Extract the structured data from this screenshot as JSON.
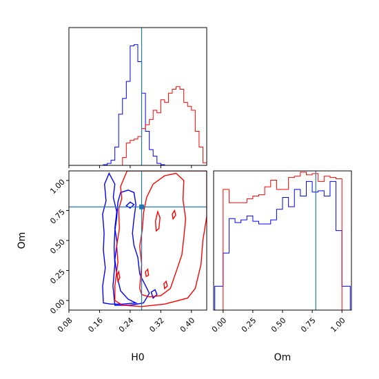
{
  "chart_data": {
    "type": "corner",
    "parameters": [
      "H0",
      "Om"
    ],
    "truth": {
      "H0": 0.27,
      "Om": 0.78
    },
    "colors": {
      "blue": "#0000ff",
      "red": "#ff0000",
      "truth": "#1f77b4",
      "axes": "#000000"
    },
    "panels": [
      {
        "id": "h0-marginal",
        "type": "step-histogram",
        "xlim": [
          0.08,
          0.44
        ],
        "x_ticks": [
          0.08,
          0.16,
          0.24,
          0.32,
          0.4
        ],
        "x_ticks_shown": false,
        "y_ticks_shown": false,
        "ylim": [
          0,
          1.05
        ],
        "bin_edges": [
          0.08,
          0.09,
          0.1,
          0.11,
          0.12,
          0.13,
          0.14,
          0.15,
          0.16,
          0.17,
          0.18,
          0.19,
          0.2,
          0.21,
          0.22,
          0.23,
          0.24,
          0.25,
          0.26,
          0.27,
          0.28,
          0.29,
          0.3,
          0.31,
          0.32,
          0.33,
          0.34,
          0.35,
          0.36,
          0.37,
          0.38,
          0.39,
          0.4,
          0.41,
          0.42,
          0.43,
          0.44
        ],
        "series": [
          {
            "color": "blue",
            "values": [
              0,
              0,
              0,
              0,
              0,
              0,
              0,
              0,
              0,
              0.005,
              0.015,
              0.04,
              0.14,
              0.39,
              0.51,
              0.64,
              0.91,
              0.92,
              0.79,
              0.55,
              0.26,
              0.12,
              0.07,
              0.015,
              0.005,
              0,
              0,
              0,
              0,
              0,
              0,
              0,
              0,
              0,
              0,
              0
            ]
          },
          {
            "color": "red",
            "values": [
              0,
              0,
              0,
              0,
              0,
              0,
              0,
              0,
              0,
              0,
              0,
              0,
              0,
              0,
              0.06,
              0.17,
              0.19,
              0.2,
              0.22,
              0.28,
              0.31,
              0.35,
              0.42,
              0.4,
              0.5,
              0.48,
              0.55,
              0.58,
              0.6,
              0.58,
              0.48,
              0.45,
              0.42,
              0.26,
              0.14,
              0.02
            ]
          }
        ]
      },
      {
        "id": "om-marginal",
        "type": "step-histogram",
        "xlim": [
          -0.08,
          1.08
        ],
        "x_ticks": [
          0.0,
          0.25,
          0.5,
          0.75,
          1.0
        ],
        "x_tick_labels": [
          "0.00",
          "0.25",
          "0.50",
          "0.75",
          "1.00"
        ],
        "xlabel": "Om",
        "y_ticks_shown": false,
        "ylim": [
          0,
          1.05
        ],
        "bin_edges": [
          -0.07,
          0.0,
          0.05,
          0.1,
          0.15,
          0.2,
          0.25,
          0.3,
          0.35,
          0.4,
          0.45,
          0.5,
          0.55,
          0.6,
          0.65,
          0.7,
          0.75,
          0.8,
          0.85,
          0.9,
          0.95,
          1.0,
          1.07
        ],
        "series": [
          {
            "color": "blue",
            "values": [
              0.18,
              0.43,
              0.69,
              0.66,
              0.68,
              0.71,
              0.67,
              0.65,
              0.65,
              0.68,
              0.76,
              0.85,
              0.78,
              0.91,
              0.86,
              0.97,
              0.89,
              0.9,
              0.86,
              0.97,
              0.6,
              0.18
            ]
          },
          {
            "color": "red",
            "values": [
              0,
              0.91,
              0.81,
              0.81,
              0.81,
              0.84,
              0.86,
              0.87,
              0.93,
              0.98,
              0.91,
              0.91,
              1.0,
              1.01,
              1.04,
              1.02,
              1.03,
              0.97,
              1.01,
              1.0,
              0.99,
              0
            ]
          }
        ]
      },
      {
        "id": "om-vs-h0",
        "type": "contour",
        "xlim": [
          0.08,
          0.44
        ],
        "ylim": [
          -0.08,
          1.08
        ],
        "x_ticks": [
          0.08,
          0.16,
          0.24,
          0.32,
          0.4
        ],
        "x_tick_labels": [
          "0.08",
          "0.16",
          "0.24",
          "0.32",
          "0.40"
        ],
        "y_ticks": [
          0.0,
          0.25,
          0.5,
          0.75,
          1.0
        ],
        "y_tick_labels": [
          "0.00",
          "0.25",
          "0.50",
          "0.75",
          "1.00"
        ],
        "xlabel": "H0",
        "ylabel": "Om",
        "contours": [
          {
            "color": "blue",
            "points": [
              [
                0.17,
                -0.02
              ],
              [
                0.168,
                0.12
              ],
              [
                0.175,
                0.27
              ],
              [
                0.17,
                0.42
              ],
              [
                0.172,
                0.56
              ],
              [
                0.168,
                0.72
              ],
              [
                0.177,
                0.83
              ],
              [
                0.173,
                0.97
              ],
              [
                0.185,
                1.06
              ],
              [
                0.2,
                0.97
              ],
              [
                0.196,
                0.86
              ],
              [
                0.205,
                0.74
              ],
              [
                0.2,
                0.6
              ],
              [
                0.206,
                0.48
              ],
              [
                0.2,
                0.34
              ],
              [
                0.206,
                0.2
              ],
              [
                0.215,
                0.08
              ],
              [
                0.235,
                0.01
              ],
              [
                0.255,
                -0.02
              ],
              [
                0.22,
                -0.03
              ],
              [
                0.19,
                -0.03
              ],
              [
                0.17,
                -0.02
              ]
            ]
          },
          {
            "color": "blue",
            "points": [
              [
                0.2,
                -0.04
              ],
              [
                0.195,
                0.12
              ],
              [
                0.2,
                0.3
              ],
              [
                0.198,
                0.44
              ],
              [
                0.2,
                0.58
              ],
              [
                0.205,
                0.69
              ],
              [
                0.208,
                0.82
              ],
              [
                0.215,
                0.9
              ],
              [
                0.235,
                0.92
              ],
              [
                0.25,
                0.9
              ],
              [
                0.255,
                0.8
              ],
              [
                0.25,
                0.68
              ],
              [
                0.246,
                0.56
              ],
              [
                0.25,
                0.46
              ],
              [
                0.26,
                0.36
              ],
              [
                0.265,
                0.22
              ],
              [
                0.29,
                0.06
              ],
              [
                0.275,
                -0.02
              ],
              [
                0.24,
                -0.04
              ],
              [
                0.2,
                -0.04
              ]
            ]
          },
          {
            "color": "blue",
            "points": [
              [
                0.23,
                0.79
              ],
              [
                0.24,
                0.82
              ],
              [
                0.25,
                0.8
              ],
              [
                0.24,
                0.77
              ],
              [
                0.23,
                0.79
              ]
            ]
          },
          {
            "color": "blue",
            "points": [
              [
                0.3,
                0.02
              ],
              [
                0.295,
                0.07
              ],
              [
                0.305,
                0.09
              ],
              [
                0.31,
                0.05
              ],
              [
                0.3,
                0.02
              ]
            ]
          },
          {
            "color": "red",
            "points": [
              [
                0.2,
                0.0
              ],
              [
                0.2,
                0.12
              ],
              [
                0.208,
                0.32
              ],
              [
                0.205,
                0.46
              ],
              [
                0.212,
                0.6
              ],
              [
                0.21,
                0.76
              ],
              [
                0.218,
                0.85
              ],
              [
                0.215,
                0.95
              ],
              [
                0.232,
                1.08
              ],
              [
                0.44,
                1.08
              ],
              [
                0.44,
                0.7
              ],
              [
                0.43,
                0.5
              ],
              [
                0.425,
                0.3
              ],
              [
                0.41,
                0.1
              ],
              [
                0.39,
                0.02
              ],
              [
                0.33,
                -0.03
              ],
              [
                0.27,
                -0.05
              ],
              [
                0.22,
                -0.04
              ],
              [
                0.2,
                0.0
              ]
            ]
          },
          {
            "color": "red",
            "points": [
              [
                0.265,
                0.1
              ],
              [
                0.27,
                0.3
              ],
              [
                0.265,
                0.45
              ],
              [
                0.272,
                0.6
              ],
              [
                0.275,
                0.73
              ],
              [
                0.283,
                0.86
              ],
              [
                0.3,
                0.97
              ],
              [
                0.33,
                1.04
              ],
              [
                0.36,
                1.06
              ],
              [
                0.38,
                1.0
              ],
              [
                0.378,
                0.84
              ],
              [
                0.385,
                0.68
              ],
              [
                0.38,
                0.52
              ],
              [
                0.375,
                0.38
              ],
              [
                0.36,
                0.24
              ],
              [
                0.345,
                0.1
              ],
              [
                0.32,
                0.04
              ],
              [
                0.29,
                0.03
              ],
              [
                0.27,
                0.05
              ],
              [
                0.265,
                0.1
              ]
            ]
          },
          {
            "color": "red",
            "points": [
              [
                0.308,
                0.58
              ],
              [
                0.306,
                0.66
              ],
              [
                0.312,
                0.74
              ],
              [
                0.318,
                0.69
              ],
              [
                0.315,
                0.6
              ],
              [
                0.308,
                0.58
              ]
            ]
          },
          {
            "color": "red",
            "points": [
              [
                0.282,
                0.2
              ],
              [
                0.28,
                0.24
              ],
              [
                0.286,
                0.26
              ],
              [
                0.288,
                0.21
              ],
              [
                0.282,
                0.2
              ]
            ]
          },
          {
            "color": "red",
            "points": [
              [
                0.33,
                0.1
              ],
              [
                0.328,
                0.14
              ],
              [
                0.334,
                0.16
              ],
              [
                0.337,
                0.12
              ],
              [
                0.33,
                0.1
              ]
            ]
          },
          {
            "color": "red",
            "points": [
              [
                0.352,
                0.68
              ],
              [
                0.35,
                0.72
              ],
              [
                0.356,
                0.75
              ],
              [
                0.359,
                0.71
              ],
              [
                0.352,
                0.68
              ]
            ]
          },
          {
            "color": "red",
            "points": [
              [
                0.208,
                0.16
              ],
              [
                0.206,
                0.21
              ],
              [
                0.21,
                0.24
              ],
              [
                0.213,
                0.19
              ],
              [
                0.208,
                0.16
              ]
            ]
          }
        ]
      }
    ]
  }
}
